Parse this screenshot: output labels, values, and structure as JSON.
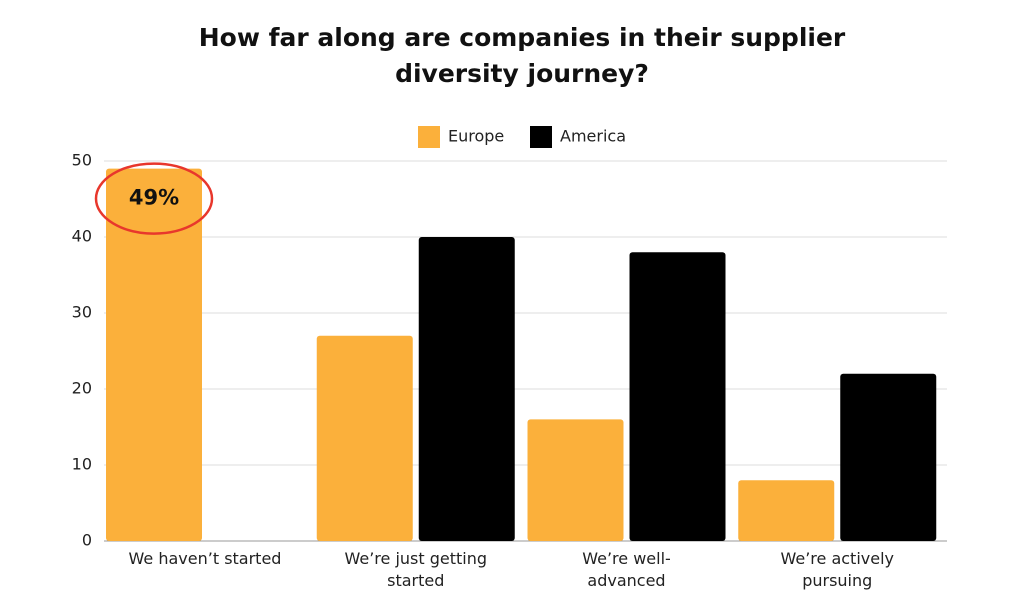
{
  "chart_data": {
    "type": "bar",
    "title": "How far along are companies in their supplier diversity journey?",
    "categories": [
      "We haven’t started",
      "We’re just getting started",
      "We’re well-advanced",
      "We’re actively pursuing"
    ],
    "series": [
      {
        "name": "Europe",
        "color": "#fbb03b",
        "values": [
          49,
          27,
          16,
          8
        ],
        "value_labels": [
          "49%",
          null,
          null,
          null
        ]
      },
      {
        "name": "America",
        "color": "#000000",
        "values": [
          null,
          40,
          38,
          22
        ]
      }
    ],
    "ylim": [
      0,
      50
    ],
    "yticks": [
      0,
      10,
      20,
      30,
      40,
      50
    ],
    "grid": true,
    "legend": "top"
  }
}
